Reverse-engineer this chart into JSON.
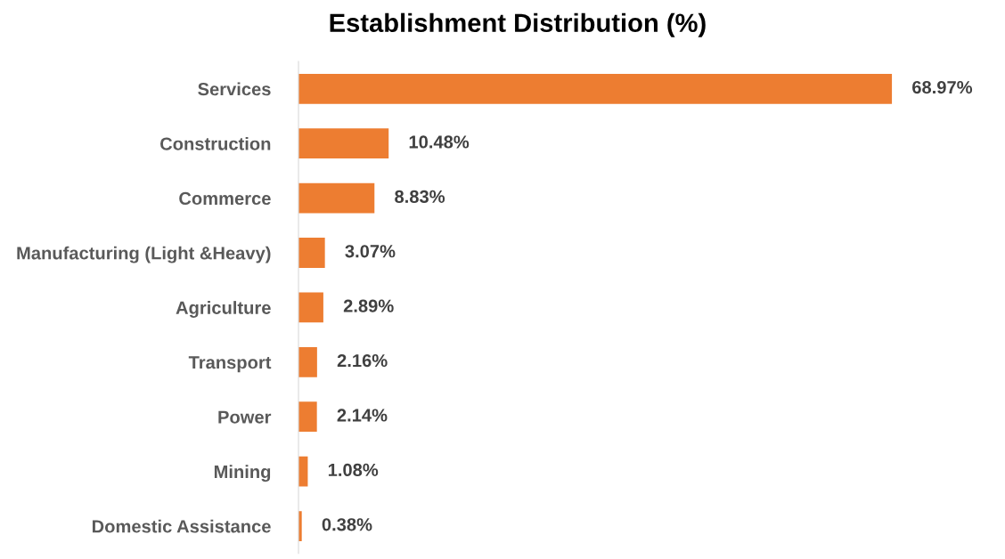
{
  "chart_data": {
    "type": "bar",
    "orientation": "horizontal",
    "title": "Establishment Distribution (%)",
    "categories": [
      "Services",
      "Construction",
      "Commerce",
      "Manufacturing (Light &Heavy)",
      "Agriculture",
      "Transport",
      "Power",
      "Mining",
      "Domestic Assistance"
    ],
    "values": [
      68.97,
      10.48,
      8.83,
      3.07,
      2.89,
      2.16,
      2.14,
      1.08,
      0.38
    ],
    "value_labels": [
      "68.97%",
      "10.48%",
      "8.83%",
      "3.07%",
      "2.89%",
      "2.16%",
      "2.14%",
      "1.08%",
      "0.38%"
    ],
    "color": "#ed7d31",
    "grid": false,
    "legend": false
  }
}
